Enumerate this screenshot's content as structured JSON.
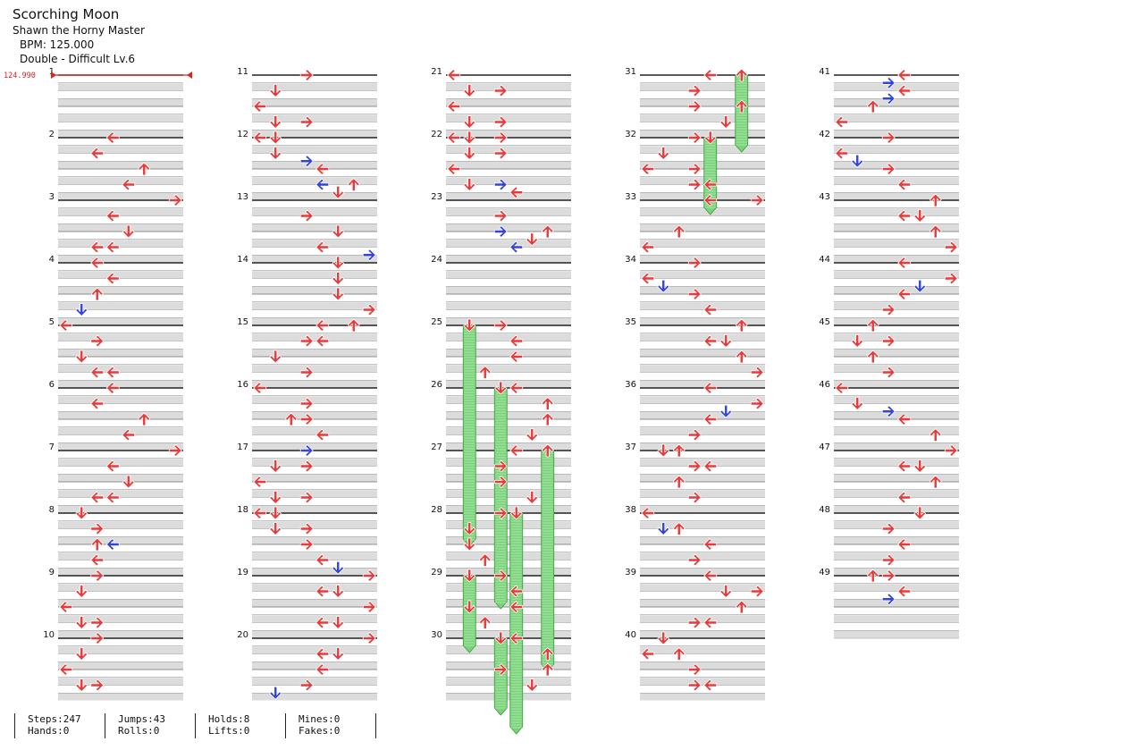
{
  "song": {
    "title": "Scorching Moon",
    "artist": "Shawn the Horny Master",
    "bpm": "BPM: 125.000",
    "difficulty": "Double - Difficult Lv.6"
  },
  "bpm_marker": "124.990",
  "colors": {
    "tap": "#e83a3a",
    "jump": "#3344dd",
    "hold": "#7ad37a",
    "band": "#dcdcdc"
  },
  "stats": [
    {
      "top": "Steps:247",
      "bottom": "Hands:0"
    },
    {
      "top": "Jumps:43",
      "bottom": "Rolls:0"
    },
    {
      "top": "Holds:8",
      "bottom": "Lifts:0"
    },
    {
      "top": "Mines:0",
      "bottom": "Fakes:0"
    }
  ],
  "measures": [
    {
      "n": "1",
      "notes": []
    },
    {
      "n": "2",
      "notes": [
        [
          0,
          3,
          "L"
        ],
        [
          2,
          2,
          "L"
        ],
        [
          4,
          5,
          "U"
        ],
        [
          6,
          4,
          "L"
        ]
      ]
    },
    {
      "n": "3",
      "notes": [
        [
          0,
          7,
          "R"
        ],
        [
          2,
          3,
          "L"
        ],
        [
          4,
          4,
          "D"
        ],
        [
          6,
          2,
          "L"
        ],
        [
          6,
          3,
          "L"
        ]
      ]
    },
    {
      "n": "4",
      "notes": [
        [
          0,
          2,
          "L"
        ],
        [
          2,
          3,
          "L"
        ],
        [
          4,
          2,
          "U"
        ],
        [
          6,
          1,
          "D",
          "b"
        ]
      ]
    },
    {
      "n": "5",
      "notes": [
        [
          0,
          0,
          "L"
        ],
        [
          2,
          2,
          "R"
        ],
        [
          4,
          1,
          "D"
        ],
        [
          6,
          2,
          "L"
        ],
        [
          6,
          3,
          "L"
        ]
      ]
    },
    {
      "n": "6",
      "notes": [
        [
          0,
          3,
          "L"
        ],
        [
          2,
          2,
          "L"
        ],
        [
          4,
          5,
          "U"
        ],
        [
          6,
          4,
          "L"
        ]
      ]
    },
    {
      "n": "7",
      "notes": [
        [
          0,
          7,
          "R"
        ],
        [
          2,
          3,
          "L"
        ],
        [
          4,
          4,
          "D"
        ],
        [
          6,
          2,
          "L"
        ],
        [
          6,
          3,
          "L"
        ]
      ]
    },
    {
      "n": "8",
      "notes": [
        [
          0,
          1,
          "D"
        ],
        [
          2,
          2,
          "R"
        ],
        [
          4,
          2,
          "U"
        ],
        [
          4,
          3,
          "L",
          "b"
        ],
        [
          6,
          2,
          "L"
        ]
      ]
    },
    {
      "n": "9",
      "notes": [
        [
          0,
          2,
          "R"
        ],
        [
          2,
          1,
          "D"
        ],
        [
          4,
          0,
          "L"
        ],
        [
          6,
          1,
          "D"
        ],
        [
          6,
          2,
          "R"
        ]
      ]
    },
    {
      "n": "10",
      "notes": [
        [
          0,
          2,
          "R"
        ],
        [
          2,
          1,
          "D"
        ],
        [
          4,
          0,
          "L"
        ],
        [
          6,
          1,
          "D"
        ],
        [
          6,
          2,
          "R"
        ]
      ]
    },
    {
      "n": "11",
      "notes": [
        [
          0,
          3,
          "R"
        ],
        [
          2,
          1,
          "D"
        ],
        [
          4,
          0,
          "L"
        ],
        [
          6,
          1,
          "D"
        ],
        [
          6,
          3,
          "R"
        ]
      ]
    },
    {
      "n": "12",
      "notes": [
        [
          0,
          0,
          "L"
        ],
        [
          0,
          1,
          "D"
        ],
        [
          2,
          1,
          "D"
        ],
        [
          3,
          3,
          "R",
          "b"
        ],
        [
          4,
          4,
          "L"
        ],
        [
          6,
          4,
          "L",
          "b"
        ],
        [
          6,
          6,
          "U"
        ],
        [
          7,
          5,
          "D"
        ]
      ]
    },
    {
      "n": "13",
      "notes": [
        [
          2,
          3,
          "R"
        ],
        [
          4,
          5,
          "D"
        ],
        [
          6,
          4,
          "L"
        ],
        [
          7,
          7,
          "R",
          "b"
        ]
      ]
    },
    {
      "n": "14",
      "notes": [
        [
          0,
          5,
          "D"
        ],
        [
          2,
          5,
          "D"
        ],
        [
          4,
          5,
          "D"
        ],
        [
          6,
          7,
          "R"
        ]
      ]
    },
    {
      "n": "15",
      "notes": [
        [
          0,
          4,
          "L"
        ],
        [
          0,
          6,
          "U"
        ],
        [
          2,
          3,
          "R"
        ],
        [
          2,
          4,
          "L"
        ],
        [
          4,
          1,
          "D"
        ],
        [
          6,
          3,
          "R"
        ]
      ]
    },
    {
      "n": "16",
      "notes": [
        [
          0,
          0,
          "L"
        ],
        [
          2,
          3,
          "R"
        ],
        [
          4,
          2,
          "U"
        ],
        [
          4,
          3,
          "R"
        ],
        [
          6,
          4,
          "L"
        ]
      ]
    },
    {
      "n": "17",
      "notes": [
        [
          0,
          3,
          "R",
          "b"
        ],
        [
          2,
          1,
          "D"
        ],
        [
          2,
          3,
          "R"
        ],
        [
          4,
          0,
          "L"
        ],
        [
          6,
          1,
          "D"
        ],
        [
          6,
          3,
          "R"
        ]
      ]
    },
    {
      "n": "18",
      "notes": [
        [
          0,
          0,
          "L"
        ],
        [
          0,
          1,
          "D"
        ],
        [
          2,
          1,
          "D"
        ],
        [
          2,
          3,
          "R"
        ],
        [
          4,
          3,
          "R"
        ],
        [
          6,
          4,
          "L"
        ],
        [
          7,
          5,
          "D",
          "b"
        ]
      ]
    },
    {
      "n": "19",
      "notes": [
        [
          0,
          7,
          "R"
        ],
        [
          2,
          4,
          "L"
        ],
        [
          2,
          5,
          "D"
        ],
        [
          4,
          7,
          "R"
        ],
        [
          6,
          4,
          "L"
        ],
        [
          6,
          5,
          "D"
        ]
      ]
    },
    {
      "n": "20",
      "notes": [
        [
          0,
          7,
          "R"
        ],
        [
          2,
          4,
          "L"
        ],
        [
          2,
          5,
          "D"
        ],
        [
          4,
          4,
          "L"
        ],
        [
          6,
          3,
          "R"
        ],
        [
          7,
          1,
          "D",
          "b"
        ]
      ]
    },
    {
      "n": "21",
      "notes": [
        [
          0,
          0,
          "L"
        ],
        [
          2,
          1,
          "D"
        ],
        [
          2,
          3,
          "R"
        ],
        [
          4,
          0,
          "L"
        ],
        [
          6,
          1,
          "D"
        ],
        [
          6,
          3,
          "R"
        ]
      ]
    },
    {
      "n": "22",
      "notes": [
        [
          0,
          0,
          "L"
        ],
        [
          0,
          1,
          "D"
        ],
        [
          0,
          3,
          "R"
        ],
        [
          2,
          1,
          "D"
        ],
        [
          2,
          3,
          "R"
        ],
        [
          4,
          0,
          "L"
        ],
        [
          6,
          1,
          "D"
        ],
        [
          6,
          3,
          "R",
          "b"
        ],
        [
          7,
          4,
          "L"
        ]
      ]
    },
    {
      "n": "23",
      "notes": [
        [
          2,
          3,
          "R"
        ],
        [
          4,
          3,
          "R",
          "b"
        ],
        [
          4,
          6,
          "U"
        ],
        [
          5,
          5,
          "D"
        ],
        [
          6,
          4,
          "L",
          "b"
        ]
      ]
    },
    {
      "n": "24",
      "notes": []
    },
    {
      "n": "25",
      "notes": [
        [
          0,
          1,
          "D"
        ],
        [
          0,
          3,
          "R"
        ],
        [
          2,
          4,
          "L"
        ],
        [
          4,
          4,
          "L"
        ],
        [
          6,
          2,
          "U"
        ]
      ]
    },
    {
      "n": "26",
      "notes": [
        [
          0,
          3,
          "D"
        ],
        [
          0,
          4,
          "L"
        ],
        [
          2,
          6,
          "U"
        ],
        [
          4,
          6,
          "U"
        ],
        [
          6,
          5,
          "D"
        ]
      ]
    },
    {
      "n": "27",
      "notes": [
        [
          0,
          4,
          "L"
        ],
        [
          0,
          6,
          "U"
        ],
        [
          2,
          3,
          "R"
        ],
        [
          4,
          3,
          "R"
        ],
        [
          6,
          5,
          "D"
        ]
      ]
    },
    {
      "n": "28",
      "notes": [
        [
          0,
          3,
          "R"
        ],
        [
          0,
          4,
          "D"
        ],
        [
          2,
          1,
          "D"
        ],
        [
          4,
          1,
          "D"
        ],
        [
          6,
          2,
          "U"
        ]
      ]
    },
    {
      "n": "29",
      "notes": [
        [
          0,
          1,
          "D"
        ],
        [
          0,
          3,
          "R"
        ],
        [
          2,
          4,
          "L"
        ],
        [
          4,
          1,
          "D"
        ],
        [
          4,
          4,
          "L"
        ],
        [
          6,
          2,
          "U"
        ]
      ]
    },
    {
      "n": "30",
      "notes": [
        [
          0,
          3,
          "D"
        ],
        [
          0,
          4,
          "L"
        ],
        [
          2,
          6,
          "U"
        ],
        [
          4,
          3,
          "R"
        ],
        [
          4,
          6,
          "U"
        ],
        [
          6,
          5,
          "D"
        ]
      ]
    },
    {
      "n": "31",
      "notes": [
        [
          0,
          4,
          "L"
        ],
        [
          0,
          6,
          "U"
        ],
        [
          2,
          3,
          "R"
        ],
        [
          4,
          3,
          "R"
        ],
        [
          4,
          6,
          "U"
        ],
        [
          6,
          5,
          "D"
        ]
      ]
    },
    {
      "n": "32",
      "notes": [
        [
          0,
          3,
          "R"
        ],
        [
          0,
          4,
          "D"
        ],
        [
          2,
          1,
          "D"
        ],
        [
          4,
          0,
          "L"
        ],
        [
          4,
          3,
          "R"
        ],
        [
          6,
          3,
          "R"
        ],
        [
          6,
          4,
          "L"
        ]
      ]
    },
    {
      "n": "33",
      "notes": [
        [
          0,
          4,
          "L"
        ],
        [
          0,
          7,
          "R"
        ],
        [
          4,
          2,
          "U"
        ],
        [
          6,
          0,
          "L"
        ]
      ]
    },
    {
      "n": "34",
      "notes": [
        [
          0,
          3,
          "R"
        ],
        [
          2,
          0,
          "L"
        ],
        [
          3,
          1,
          "D",
          "b"
        ],
        [
          4,
          3,
          "R"
        ],
        [
          6,
          4,
          "L"
        ]
      ]
    },
    {
      "n": "35",
      "notes": [
        [
          0,
          6,
          "U"
        ],
        [
          2,
          4,
          "L"
        ],
        [
          2,
          5,
          "D"
        ],
        [
          4,
          6,
          "U"
        ],
        [
          6,
          7,
          "R"
        ]
      ]
    },
    {
      "n": "36",
      "notes": [
        [
          0,
          4,
          "L"
        ],
        [
          2,
          7,
          "R"
        ],
        [
          3,
          5,
          "D",
          "b"
        ],
        [
          4,
          4,
          "L"
        ],
        [
          6,
          3,
          "R"
        ]
      ]
    },
    {
      "n": "37",
      "notes": [
        [
          0,
          1,
          "D"
        ],
        [
          0,
          2,
          "U"
        ],
        [
          2,
          3,
          "R"
        ],
        [
          2,
          4,
          "L"
        ],
        [
          4,
          2,
          "U"
        ],
        [
          6,
          3,
          "R"
        ]
      ]
    },
    {
      "n": "38",
      "notes": [
        [
          0,
          0,
          "L"
        ],
        [
          2,
          1,
          "D",
          "b"
        ],
        [
          2,
          2,
          "U"
        ],
        [
          4,
          4,
          "L"
        ],
        [
          6,
          3,
          "R"
        ]
      ]
    },
    {
      "n": "39",
      "notes": [
        [
          0,
          4,
          "L"
        ],
        [
          2,
          5,
          "D"
        ],
        [
          2,
          7,
          "R"
        ],
        [
          4,
          6,
          "U"
        ],
        [
          6,
          3,
          "R"
        ],
        [
          6,
          4,
          "L"
        ]
      ]
    },
    {
      "n": "40",
      "notes": [
        [
          0,
          1,
          "D"
        ],
        [
          2,
          0,
          "L"
        ],
        [
          2,
          2,
          "U"
        ],
        [
          4,
          3,
          "R"
        ],
        [
          6,
          3,
          "R"
        ],
        [
          6,
          4,
          "L"
        ]
      ]
    },
    {
      "n": "41",
      "notes": [
        [
          0,
          4,
          "L"
        ],
        [
          1,
          3,
          "R",
          "b"
        ],
        [
          2,
          4,
          "L"
        ],
        [
          3,
          3,
          "R",
          "b"
        ],
        [
          4,
          2,
          "U"
        ],
        [
          6,
          0,
          "L"
        ]
      ]
    },
    {
      "n": "42",
      "notes": [
        [
          0,
          3,
          "R"
        ],
        [
          2,
          0,
          "L"
        ],
        [
          3,
          1,
          "D",
          "b"
        ],
        [
          4,
          3,
          "R"
        ],
        [
          6,
          4,
          "L"
        ]
      ]
    },
    {
      "n": "43",
      "notes": [
        [
          0,
          6,
          "U"
        ],
        [
          2,
          4,
          "L"
        ],
        [
          2,
          5,
          "D"
        ],
        [
          4,
          6,
          "U"
        ],
        [
          6,
          7,
          "R"
        ]
      ]
    },
    {
      "n": "44",
      "notes": [
        [
          0,
          4,
          "L"
        ],
        [
          2,
          7,
          "R"
        ],
        [
          3,
          5,
          "D",
          "b"
        ],
        [
          4,
          4,
          "L"
        ],
        [
          6,
          3,
          "R"
        ]
      ]
    },
    {
      "n": "45",
      "notes": [
        [
          0,
          2,
          "U"
        ],
        [
          2,
          1,
          "D"
        ],
        [
          2,
          3,
          "R"
        ],
        [
          4,
          2,
          "U"
        ],
        [
          6,
          3,
          "R"
        ]
      ]
    },
    {
      "n": "46",
      "notes": [
        [
          0,
          0,
          "L"
        ],
        [
          2,
          1,
          "D"
        ],
        [
          3,
          3,
          "R",
          "b"
        ],
        [
          4,
          4,
          "L"
        ],
        [
          6,
          6,
          "U"
        ]
      ]
    },
    {
      "n": "47",
      "notes": [
        [
          0,
          7,
          "R"
        ],
        [
          2,
          4,
          "L"
        ],
        [
          2,
          5,
          "D"
        ],
        [
          4,
          6,
          "U"
        ],
        [
          6,
          4,
          "L"
        ]
      ]
    },
    {
      "n": "48",
      "notes": [
        [
          0,
          5,
          "D"
        ],
        [
          2,
          3,
          "R"
        ],
        [
          4,
          4,
          "L"
        ],
        [
          6,
          3,
          "R"
        ]
      ]
    },
    {
      "n": "49",
      "notes": [
        [
          0,
          2,
          "U"
        ],
        [
          0,
          3,
          "R"
        ],
        [
          2,
          4,
          "L"
        ],
        [
          3,
          3,
          "R",
          "b"
        ]
      ]
    }
  ],
  "holds": [
    {
      "measure": "25",
      "lane": 1,
      "from": 0,
      "to": 3.5
    },
    {
      "measure": "26",
      "lane": 3,
      "from": 0,
      "to": 3.5
    },
    {
      "measure": "27",
      "lane": 6,
      "from": 0,
      "to": 3.5
    },
    {
      "measure": "28",
      "lane": 4,
      "from": 0,
      "to": 3.5
    },
    {
      "measure": "29",
      "lane": 1,
      "from": 0,
      "to": 1.2
    },
    {
      "measure": "30",
      "lane": 3,
      "from": 0,
      "to": 1.2
    },
    {
      "measure": "31",
      "lane": 6,
      "from": 0,
      "to": 1.2
    },
    {
      "measure": "32",
      "lane": 4,
      "from": 0,
      "to": 1.2
    }
  ]
}
